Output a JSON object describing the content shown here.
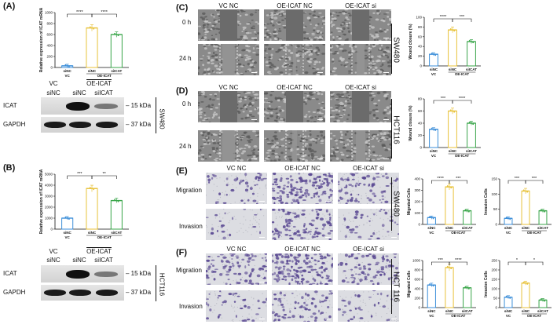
{
  "panels": {
    "A": {
      "label": "(A)",
      "chart_data": {
        "type": "bar",
        "ylabel": "Relative expression of ICAT mRNA",
        "yticks": [
          "0",
          "200",
          "400",
          "600",
          "800",
          "1000"
        ],
        "ylim": [
          0,
          1000
        ],
        "categories": [
          "siNC",
          "siNC",
          "siICAT"
        ],
        "values": [
          30,
          720,
          600
        ],
        "colors": [
          "#3b8ed9",
          "#e8c23a",
          "#3aa64a"
        ],
        "group_labels": [
          "VC",
          "OE-ICAT"
        ],
        "significance": [
          "****",
          "****"
        ]
      },
      "blot": {
        "col_labels": [
          "VC",
          "OE-ICAT"
        ],
        "sub_labels": [
          "siNC",
          "siNC",
          "siICAT"
        ],
        "rows": [
          {
            "name": "ICAT",
            "kda": "15 kDa"
          },
          {
            "name": "GAPDH",
            "kda": "37 kDa"
          }
        ],
        "cell_line": "SW480"
      }
    },
    "B": {
      "label": "(B)",
      "chart_data": {
        "type": "bar",
        "ylabel": "Relative expression of ICAT mRNA",
        "yticks": [
          "0",
          "1000",
          "2000",
          "3000",
          "4000",
          "5000"
        ],
        "ylim": [
          0,
          5000
        ],
        "categories": [
          "siNC",
          "siNC",
          "siICAT"
        ],
        "values": [
          1000,
          3700,
          2600
        ],
        "colors": [
          "#3b8ed9",
          "#e8c23a",
          "#3aa64a"
        ],
        "group_labels": [
          "VC",
          "OE-ICAT"
        ],
        "significance": [
          "***",
          "**"
        ]
      },
      "blot": {
        "col_labels": [
          "VC",
          "OE-ICAT"
        ],
        "sub_labels": [
          "siNC",
          "siNC",
          "siICAT"
        ],
        "rows": [
          {
            "name": "ICAT",
            "kda": "15 kDa"
          },
          {
            "name": "GAPDH",
            "kda": "37 kDa"
          }
        ],
        "cell_line": "HCT116"
      }
    },
    "C": {
      "label": "(C)",
      "columns": [
        "VC NC",
        "OE-ICAT NC",
        "OE-ICAT si"
      ],
      "rows": [
        "0 h",
        "24 h"
      ],
      "cell_line": "SW480",
      "chart_data": {
        "type": "bar",
        "ylabel": "Wound closure (%)",
        "yticks": [
          "0",
          "20",
          "40",
          "60",
          "80",
          "100"
        ],
        "ylim": [
          0,
          100
        ],
        "categories": [
          "siNC",
          "siNC",
          "siICAT"
        ],
        "values": [
          24,
          74,
          50
        ],
        "colors": [
          "#3b8ed9",
          "#e8c23a",
          "#3aa64a"
        ],
        "group_labels": [
          "VC",
          "OE-ICAT"
        ],
        "significance": [
          "****",
          "***"
        ]
      }
    },
    "D": {
      "label": "(D)",
      "columns": [
        "VC NC",
        "OE-ICAT NC",
        "OE-ICAT si"
      ],
      "rows": [
        "0 h",
        "24 h"
      ],
      "cell_line": "HCT116",
      "chart_data": {
        "type": "bar",
        "ylabel": "Wound closure (%)",
        "yticks": [
          "0",
          "20",
          "40",
          "60",
          "80"
        ],
        "ylim": [
          0,
          80
        ],
        "categories": [
          "siNC",
          "siNC",
          "siICAT"
        ],
        "values": [
          30,
          60,
          40
        ],
        "colors": [
          "#3b8ed9",
          "#e8c23a",
          "#3aa64a"
        ],
        "group_labels": [
          "VC",
          "OE-ICAT"
        ],
        "significance": [
          "***",
          "****"
        ]
      }
    },
    "E": {
      "label": "(E)",
      "columns": [
        "VC NC",
        "OE-ICAT NC",
        "OE-ICAT si"
      ],
      "rows": [
        "Migration",
        "Invasion"
      ],
      "cell_line": "SW480",
      "chart_data": [
        {
          "type": "bar",
          "ylabel": "Migrated Cells",
          "yticks": [
            "0",
            "100",
            "200",
            "300",
            "400"
          ],
          "ylim": [
            0,
            400
          ],
          "categories": [
            "siNC",
            "siNC",
            "siICAT"
          ],
          "values": [
            60,
            330,
            120
          ],
          "colors": [
            "#3b8ed9",
            "#e8c23a",
            "#3aa64a"
          ],
          "group_labels": [
            "VC",
            "OE-ICAT"
          ],
          "significance": [
            "****",
            "***"
          ]
        },
        {
          "type": "bar",
          "ylabel": "Invasion Cells",
          "yticks": [
            "0",
            "50",
            "100",
            "150"
          ],
          "ylim": [
            0,
            150
          ],
          "categories": [
            "siNC",
            "siNC",
            "siICAT"
          ],
          "values": [
            20,
            110,
            45
          ],
          "colors": [
            "#3b8ed9",
            "#e8c23a",
            "#3aa64a"
          ],
          "group_labels": [
            "VC",
            "OE-ICAT"
          ],
          "significance": [
            "***",
            "***"
          ]
        }
      ]
    },
    "F": {
      "label": "(F)",
      "columns": [
        "VC NC",
        "OE-ICAT NC",
        "OE-ICAT si"
      ],
      "rows": [
        "Migration",
        "Invasion"
      ],
      "cell_line": "HCT 116",
      "chart_data": [
        {
          "type": "bar",
          "ylabel": "Migrated Cells",
          "yticks": [
            "0",
            "200",
            "400",
            "600",
            "800",
            "1000"
          ],
          "ylim": [
            0,
            1000
          ],
          "categories": [
            "siNC",
            "siNC",
            "siICAT"
          ],
          "values": [
            480,
            850,
            420
          ],
          "colors": [
            "#3b8ed9",
            "#e8c23a",
            "#3aa64a"
          ],
          "group_labels": [
            "VC",
            "OE-ICAT"
          ],
          "significance": [
            "***",
            "****"
          ]
        },
        {
          "type": "bar",
          "ylabel": "Invasion Cells",
          "yticks": [
            "0",
            "50",
            "100",
            "150",
            "200",
            "250"
          ],
          "ylim": [
            0,
            250
          ],
          "categories": [
            "siNC",
            "siNC",
            "siICAT"
          ],
          "values": [
            55,
            130,
            40
          ],
          "colors": [
            "#3b8ed9",
            "#e8c23a",
            "#3aa64a"
          ],
          "group_labels": [
            "VC",
            "OE-ICAT"
          ],
          "significance": [
            "*",
            "*"
          ]
        }
      ]
    }
  }
}
